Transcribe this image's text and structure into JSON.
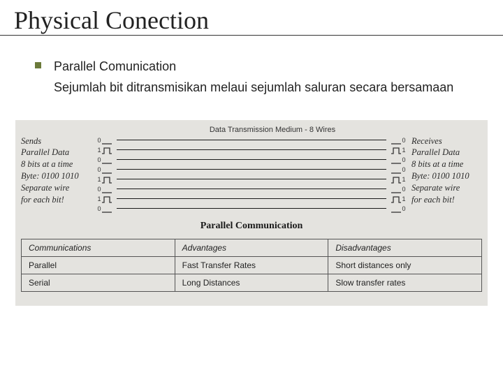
{
  "title": "Physical Conection",
  "bullet": {
    "heading": "Parallel Comunication",
    "body": "Sejumlah bit ditransmisikan melaui sejumlah saluran secara bersamaan"
  },
  "diagram": {
    "header": "Data Transmission Medium - 8 Wires",
    "left": {
      "l1": "Sends",
      "l2": "Parallel Data",
      "l3": "8 bits at a time",
      "l4": "Byte: 0100 1010",
      "l5": "Separate wire",
      "l6": "for each bit!"
    },
    "right": {
      "l1": "Receives",
      "l2": "Parallel Data",
      "l3": "8 bits at a time",
      "l4": "Byte: 0100 1010",
      "l5": "Separate wire",
      "l6": "for each bit!"
    },
    "bits": [
      "0",
      "1",
      "0",
      "0",
      "1",
      "0",
      "1",
      "0"
    ],
    "caption": "Parallel Communication",
    "colors": {
      "wire": "#1a1a1a",
      "bg": "#e4e3df",
      "pulse": "#333333"
    }
  },
  "table": {
    "headers": [
      "Communications",
      "Advantages",
      "Disadvantages"
    ],
    "rows": [
      [
        "Parallel",
        "Fast Transfer Rates",
        "Short distances only"
      ],
      [
        "Serial",
        "Long Distances",
        "Slow transfer rates"
      ]
    ]
  }
}
